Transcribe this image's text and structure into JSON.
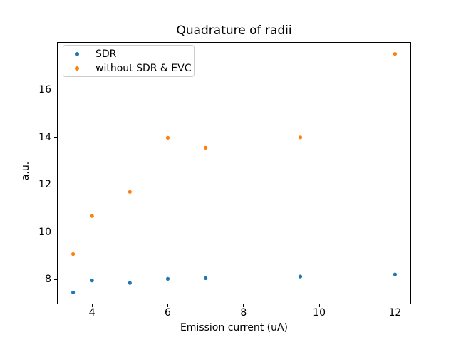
{
  "figure": {
    "background": "#ffffff",
    "text_color": "#000000"
  },
  "chart_data": {
    "type": "scatter",
    "title": "Quadrature of radii",
    "xlabel": "Emission current (uA)",
    "ylabel": "a.u.",
    "x": [
      3.5,
      4,
      5,
      6,
      7,
      9.5,
      12
    ],
    "series": [
      {
        "name": "SDR",
        "color": "#1f77b4",
        "values": [
          7.46,
          7.96,
          7.86,
          8.03,
          8.06,
          8.13,
          8.22
        ]
      },
      {
        "name": "without SDR & EVC",
        "color": "#ff7f0e",
        "values": [
          9.08,
          10.68,
          11.7,
          13.98,
          13.56,
          14.0,
          17.52
        ]
      }
    ],
    "xlim": [
      3.075,
      12.425
    ],
    "ylim": [
      6.96,
      18.02
    ],
    "xticks": [
      4,
      6,
      8,
      10,
      12
    ],
    "yticks": [
      8,
      10,
      12,
      14,
      16
    ],
    "grid": false,
    "legend": {
      "position": "upper left",
      "border_color": "#cccccc",
      "entries": [
        "SDR",
        "without SDR & EVC"
      ]
    }
  }
}
